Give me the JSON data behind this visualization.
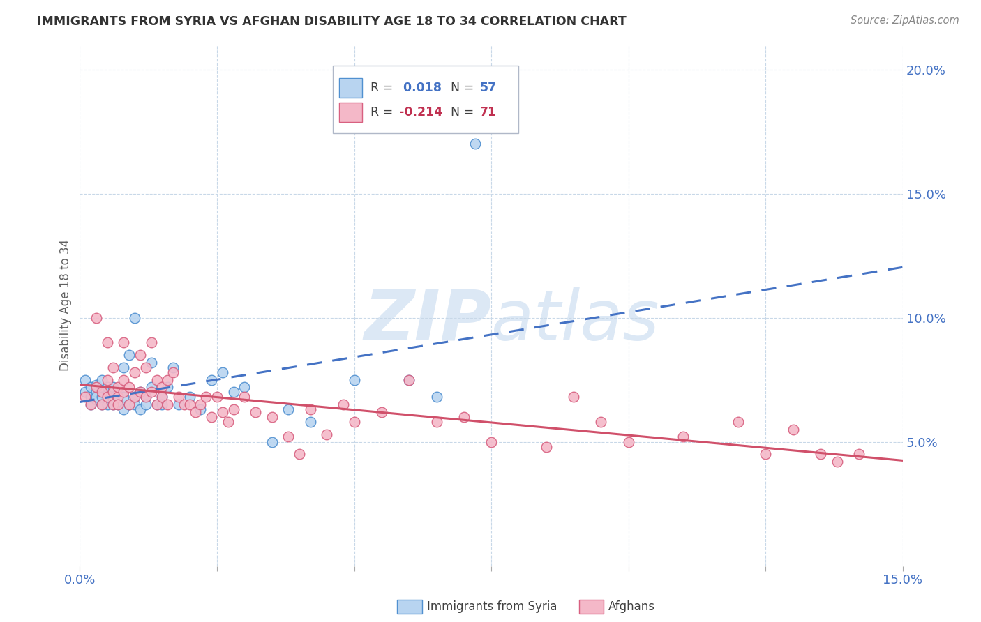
{
  "title": "IMMIGRANTS FROM SYRIA VS AFGHAN DISABILITY AGE 18 TO 34 CORRELATION CHART",
  "source": "Source: ZipAtlas.com",
  "ylabel": "Disability Age 18 to 34",
  "xlim": [
    0.0,
    0.15
  ],
  "ylim": [
    0.0,
    0.21
  ],
  "xticks": [
    0.0,
    0.025,
    0.05,
    0.075,
    0.1,
    0.125,
    0.15
  ],
  "yticks": [
    0.0,
    0.05,
    0.1,
    0.15,
    0.2
  ],
  "ytick_labels": [
    "",
    "5.0%",
    "10.0%",
    "15.0%",
    "20.0%"
  ],
  "xtick_labels": [
    "0.0%",
    "",
    "",
    "",
    "",
    "",
    "15.0%"
  ],
  "legend_syria_R": "0.018",
  "legend_syria_N": "57",
  "legend_afghan_R": "-0.214",
  "legend_afghan_N": "71",
  "color_syria_fill": "#b8d4f0",
  "color_afghan_fill": "#f4b8c8",
  "color_syria_edge": "#5090d0",
  "color_afghan_edge": "#d86080",
  "color_syria_line": "#4472c4",
  "color_afghan_line": "#d0506a",
  "color_text_blue": "#4472c4",
  "color_text_red": "#c03050",
  "color_text_dark": "#404040",
  "color_axis": "#4472c4",
  "watermark_color": "#dce8f5",
  "background_color": "#ffffff",
  "grid_color": "#c8d8e8",
  "syria_x": [
    0.001,
    0.001,
    0.002,
    0.002,
    0.002,
    0.003,
    0.003,
    0.003,
    0.003,
    0.004,
    0.004,
    0.004,
    0.004,
    0.005,
    0.005,
    0.005,
    0.005,
    0.006,
    0.006,
    0.006,
    0.006,
    0.007,
    0.007,
    0.007,
    0.008,
    0.008,
    0.008,
    0.009,
    0.009,
    0.01,
    0.01,
    0.01,
    0.011,
    0.011,
    0.012,
    0.012,
    0.013,
    0.013,
    0.014,
    0.015,
    0.015,
    0.016,
    0.017,
    0.018,
    0.02,
    0.022,
    0.024,
    0.026,
    0.028,
    0.03,
    0.035,
    0.038,
    0.042,
    0.05,
    0.06,
    0.065,
    0.072
  ],
  "syria_y": [
    0.07,
    0.075,
    0.068,
    0.072,
    0.065,
    0.067,
    0.07,
    0.073,
    0.068,
    0.065,
    0.071,
    0.068,
    0.075,
    0.069,
    0.065,
    0.072,
    0.068,
    0.067,
    0.07,
    0.065,
    0.072,
    0.068,
    0.07,
    0.065,
    0.063,
    0.08,
    0.068,
    0.065,
    0.085,
    0.068,
    0.1,
    0.065,
    0.07,
    0.063,
    0.068,
    0.065,
    0.072,
    0.082,
    0.065,
    0.068,
    0.065,
    0.072,
    0.08,
    0.065,
    0.068,
    0.063,
    0.075,
    0.078,
    0.07,
    0.072,
    0.05,
    0.063,
    0.058,
    0.075,
    0.075,
    0.068,
    0.17
  ],
  "afghan_x": [
    0.001,
    0.002,
    0.003,
    0.003,
    0.004,
    0.004,
    0.005,
    0.005,
    0.005,
    0.006,
    0.006,
    0.006,
    0.007,
    0.007,
    0.007,
    0.008,
    0.008,
    0.008,
    0.009,
    0.009,
    0.01,
    0.01,
    0.011,
    0.011,
    0.012,
    0.012,
    0.013,
    0.013,
    0.014,
    0.014,
    0.015,
    0.015,
    0.016,
    0.016,
    0.017,
    0.018,
    0.019,
    0.02,
    0.021,
    0.022,
    0.023,
    0.024,
    0.025,
    0.026,
    0.027,
    0.028,
    0.03,
    0.032,
    0.035,
    0.038,
    0.04,
    0.042,
    0.045,
    0.048,
    0.05,
    0.055,
    0.06,
    0.065,
    0.07,
    0.075,
    0.085,
    0.09,
    0.095,
    0.1,
    0.11,
    0.12,
    0.125,
    0.13,
    0.135,
    0.138,
    0.142
  ],
  "afghan_y": [
    0.068,
    0.065,
    0.072,
    0.1,
    0.065,
    0.07,
    0.068,
    0.075,
    0.09,
    0.065,
    0.07,
    0.08,
    0.068,
    0.072,
    0.065,
    0.07,
    0.075,
    0.09,
    0.065,
    0.072,
    0.068,
    0.078,
    0.07,
    0.085,
    0.068,
    0.08,
    0.07,
    0.09,
    0.065,
    0.075,
    0.068,
    0.072,
    0.065,
    0.075,
    0.078,
    0.068,
    0.065,
    0.065,
    0.062,
    0.065,
    0.068,
    0.06,
    0.068,
    0.062,
    0.058,
    0.063,
    0.068,
    0.062,
    0.06,
    0.052,
    0.045,
    0.063,
    0.053,
    0.065,
    0.058,
    0.062,
    0.075,
    0.058,
    0.06,
    0.05,
    0.048,
    0.068,
    0.058,
    0.05,
    0.052,
    0.058,
    0.045,
    0.055,
    0.045,
    0.042,
    0.045
  ]
}
